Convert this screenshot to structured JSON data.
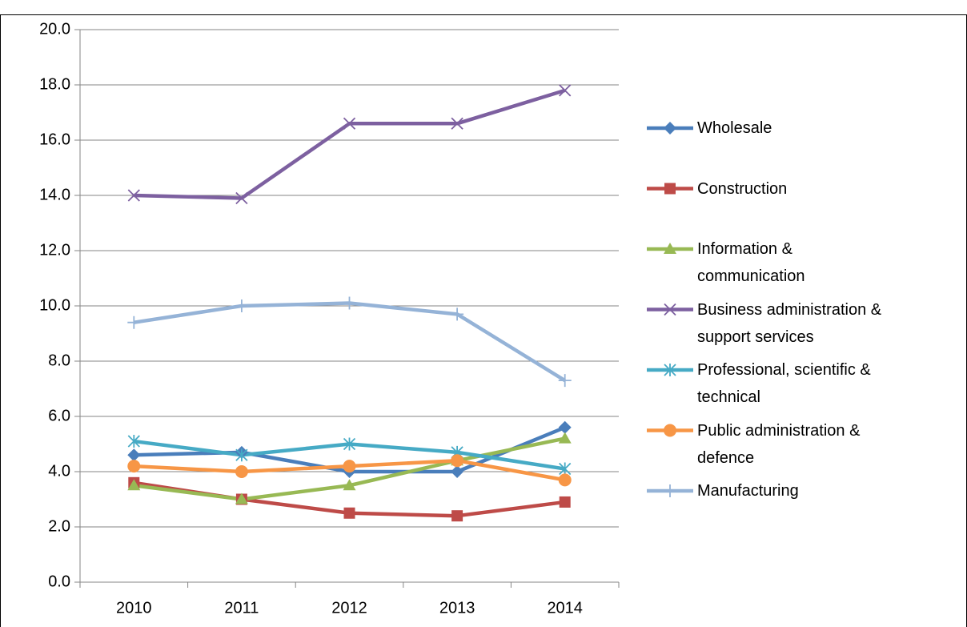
{
  "chart_data": {
    "type": "line",
    "categories": [
      "2010",
      "2011",
      "2012",
      "2013",
      "2014"
    ],
    "series": [
      {
        "name": "Wholesale",
        "color": "#4a7ebb",
        "marker": "diamond",
        "values": [
          4.6,
          4.7,
          4.0,
          4.0,
          5.6
        ]
      },
      {
        "name": "Construction",
        "color": "#be4b48",
        "marker": "square",
        "values": [
          3.6,
          3.0,
          2.5,
          2.4,
          2.9
        ]
      },
      {
        "name": "Information & communication",
        "color": "#98b954",
        "marker": "triangle",
        "values": [
          3.5,
          3.0,
          3.5,
          4.4,
          5.2
        ]
      },
      {
        "name": "Business administration & support services",
        "color": "#7d60a0",
        "marker": "x",
        "values": [
          14.0,
          13.9,
          16.6,
          16.6,
          17.8
        ]
      },
      {
        "name": "Professional, scientific & technical",
        "color": "#46aac5",
        "marker": "star",
        "values": [
          5.1,
          4.6,
          5.0,
          4.7,
          4.1
        ]
      },
      {
        "name": "Public administration & defence",
        "color": "#f79646",
        "marker": "circle",
        "values": [
          4.2,
          4.0,
          4.2,
          4.4,
          3.7
        ]
      },
      {
        "name": "Manufacturing",
        "color": "#95b3d7",
        "marker": "plus",
        "values": [
          9.4,
          10.0,
          10.1,
          9.7,
          7.3
        ]
      }
    ],
    "ylim": [
      0,
      20
    ],
    "yticks": [
      {
        "value": 0,
        "label": "0.0"
      },
      {
        "value": 2,
        "label": "2.0"
      },
      {
        "value": 4,
        "label": "4.0"
      },
      {
        "value": 6,
        "label": "6.0"
      },
      {
        "value": 8,
        "label": "8.0"
      },
      {
        "value": 10,
        "label": "10.0"
      },
      {
        "value": 12,
        "label": "12.0"
      },
      {
        "value": 14,
        "label": "14.0"
      },
      {
        "value": 16,
        "label": "16.0"
      },
      {
        "value": 18,
        "label": "18.0"
      },
      {
        "value": 20,
        "label": "20.0"
      }
    ],
    "grid": true,
    "legend": "right"
  }
}
